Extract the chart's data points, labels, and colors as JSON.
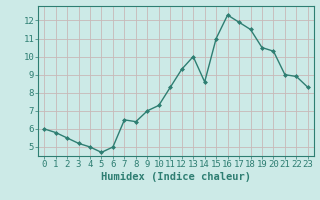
{
  "x": [
    0,
    1,
    2,
    3,
    4,
    5,
    6,
    7,
    8,
    9,
    10,
    11,
    12,
    13,
    14,
    15,
    16,
    17,
    18,
    19,
    20,
    21,
    22,
    23
  ],
  "y": [
    6.0,
    5.8,
    5.5,
    5.2,
    5.0,
    4.7,
    5.0,
    6.5,
    6.4,
    7.0,
    7.3,
    8.3,
    9.3,
    10.0,
    8.6,
    11.0,
    12.3,
    11.9,
    11.5,
    10.5,
    10.3,
    9.0,
    8.9,
    8.3
  ],
  "line_color": "#2e7e72",
  "marker": "D",
  "marker_size": 2.0,
  "line_width": 1.0,
  "bg_color": "#cceae7",
  "grid_color": "#c8b8b8",
  "xlabel": "Humidex (Indice chaleur)",
  "xlabel_fontsize": 7.5,
  "tick_color": "#2e7e72",
  "ylim": [
    4.5,
    12.8
  ],
  "yticks": [
    5,
    6,
    7,
    8,
    9,
    10,
    11,
    12
  ],
  "xlim": [
    -0.5,
    23.5
  ],
  "xticks": [
    0,
    1,
    2,
    3,
    4,
    5,
    6,
    7,
    8,
    9,
    10,
    11,
    12,
    13,
    14,
    15,
    16,
    17,
    18,
    19,
    20,
    21,
    22,
    23
  ],
  "tick_fontsize": 6.5
}
